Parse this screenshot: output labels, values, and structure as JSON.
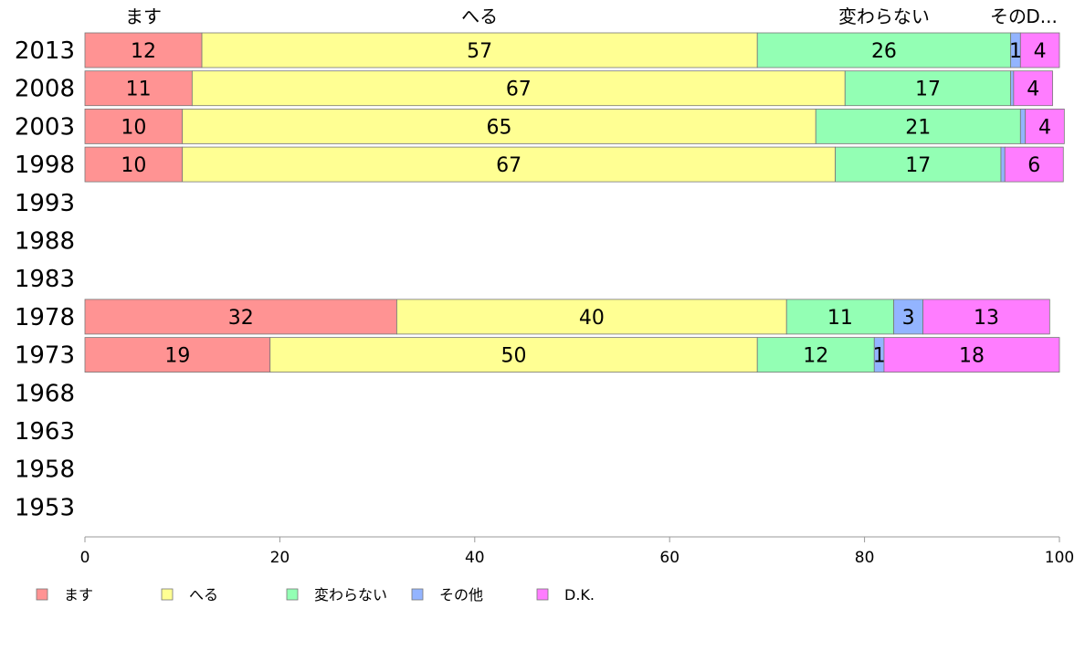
{
  "chart_data": {
    "type": "bar",
    "orientation": "horizontal",
    "stacked": true,
    "title": "",
    "xlabel": "",
    "ylabel": "",
    "xlim": [
      0,
      100
    ],
    "x_ticks": [
      0,
      20,
      40,
      60,
      80,
      100
    ],
    "grid": false,
    "legend_position": "bottom",
    "categories": [
      "2013",
      "2008",
      "2003",
      "1998",
      "1993",
      "1988",
      "1983",
      "1978",
      "1973",
      "1968",
      "1963",
      "1958",
      "1953"
    ],
    "series": [
      {
        "name": "ます",
        "top_label": "ます",
        "color": "#ff9393",
        "values": [
          12,
          11,
          10,
          10,
          null,
          null,
          null,
          32,
          19,
          null,
          null,
          null,
          null
        ]
      },
      {
        "name": "へる",
        "top_label": "へる",
        "color": "#ffff93",
        "values": [
          57,
          67,
          65,
          67,
          null,
          null,
          null,
          40,
          50,
          null,
          null,
          null,
          null
        ]
      },
      {
        "name": "変わらない",
        "top_label": "変わらない",
        "color": "#93ffb4",
        "values": [
          26,
          17,
          21,
          17,
          null,
          null,
          null,
          11,
          12,
          null,
          null,
          null,
          null
        ]
      },
      {
        "name": "その他",
        "top_label": "その",
        "color": "#93b4ff",
        "values": [
          1,
          0.3,
          0.5,
          0.4,
          null,
          null,
          null,
          3,
          1,
          null,
          null,
          null,
          null
        ]
      },
      {
        "name": "D.K.",
        "top_label": "D...",
        "color": "#ff7dff",
        "values": [
          4,
          4,
          4,
          6,
          null,
          null,
          null,
          13,
          18,
          null,
          null,
          null,
          null
        ]
      }
    ],
    "segment_labels": [
      [
        "12",
        "57",
        "26",
        "1",
        "4"
      ],
      [
        "11",
        "67",
        "17",
        "",
        "4"
      ],
      [
        "10",
        "65",
        "21",
        "",
        "4"
      ],
      [
        "10",
        "67",
        "17",
        "",
        "6"
      ],
      null,
      null,
      null,
      [
        "32",
        "40",
        "11",
        "3",
        "13"
      ],
      [
        "19",
        "50",
        "12",
        "1",
        "18"
      ],
      null,
      null,
      null,
      null
    ]
  }
}
